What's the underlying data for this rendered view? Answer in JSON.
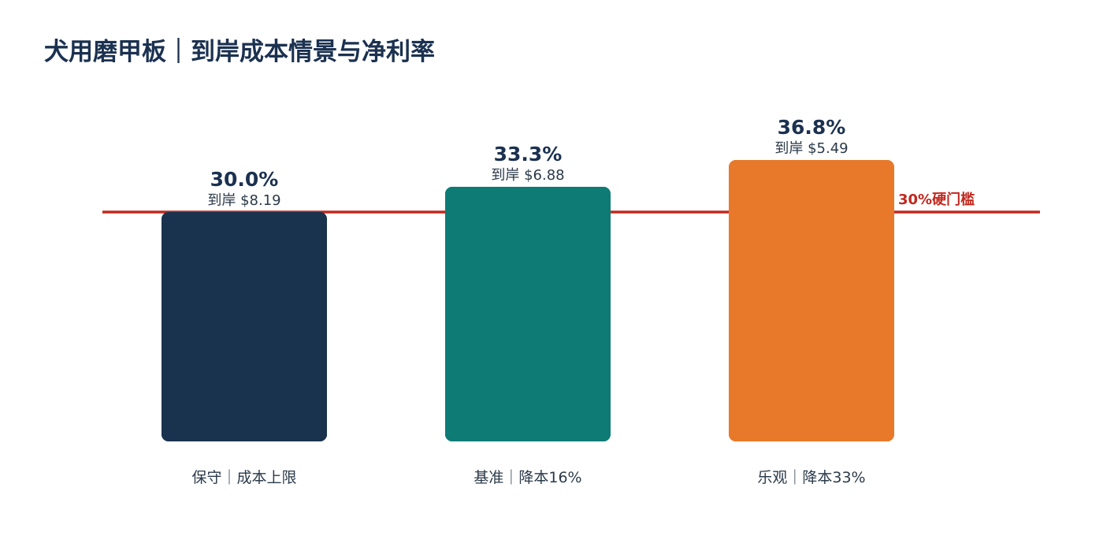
{
  "title": "犬用磨甲板｜到岸成本情景与净利率",
  "chart_data": {
    "type": "bar",
    "title": "犬用磨甲板｜到岸成本情景与净利率",
    "categories": [
      "保守｜成本上限",
      "基准｜降本16%",
      "乐观｜降本33%"
    ],
    "values": [
      30.0,
      33.3,
      36.8
    ],
    "value_labels": [
      "30.0%",
      "33.3%",
      "36.8%"
    ],
    "sub_labels": [
      "到岸 $8.19",
      "到岸 $6.88",
      "到岸 $5.49"
    ],
    "colors": [
      "#19324e",
      "#0e7b75",
      "#e8792b"
    ],
    "threshold": {
      "value": 30,
      "label": "30%硬门槛",
      "color": "#c0281e"
    },
    "xlabel": "",
    "ylabel": "",
    "ylim": [
      0,
      36.8
    ],
    "grid": false,
    "legend": "none"
  }
}
